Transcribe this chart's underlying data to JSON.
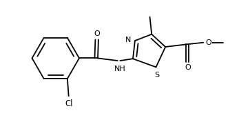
{
  "bg": "#ffffff",
  "lc": "#000000",
  "lw": 1.3,
  "fs": 8.0,
  "figsize": [
    3.47,
    1.77
  ],
  "dpi": 100,
  "xlim": [
    -0.1,
    3.6
  ],
  "ylim": [
    -0.1,
    1.85
  ]
}
